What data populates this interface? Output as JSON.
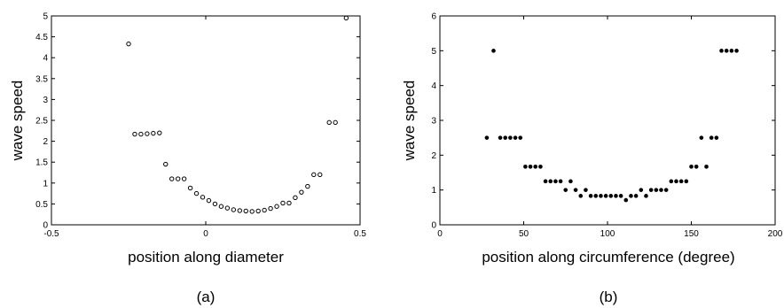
{
  "chart_data": [
    {
      "type": "scatter",
      "panel_label": "(a)",
      "xlabel": "position along diameter",
      "ylabel": "wave speed",
      "xlim": [
        -0.5,
        0.5
      ],
      "ylim": [
        0,
        5
      ],
      "xticks": [
        -0.5,
        0,
        0.5
      ],
      "xtick_labels": [
        "-0.5",
        "0",
        "0.5"
      ],
      "yticks": [
        0,
        0.5,
        1,
        1.5,
        2,
        2.5,
        3,
        3.5,
        4,
        4.5,
        5
      ],
      "ytick_labels": [
        "0",
        "0.5",
        "1",
        "1.5",
        "2",
        "2.5",
        "3",
        "3.5",
        "4",
        "4.5",
        "5"
      ],
      "marker": "open-circle",
      "grid": false,
      "points": [
        {
          "x": -0.25,
          "y": 4.33
        },
        {
          "x": -0.23,
          "y": 2.17
        },
        {
          "x": -0.21,
          "y": 2.17
        },
        {
          "x": -0.19,
          "y": 2.18
        },
        {
          "x": -0.17,
          "y": 2.19
        },
        {
          "x": -0.15,
          "y": 2.2
        },
        {
          "x": -0.13,
          "y": 1.45
        },
        {
          "x": -0.11,
          "y": 1.1
        },
        {
          "x": -0.09,
          "y": 1.1
        },
        {
          "x": -0.07,
          "y": 1.1
        },
        {
          "x": -0.05,
          "y": 0.88
        },
        {
          "x": -0.03,
          "y": 0.75
        },
        {
          "x": -0.01,
          "y": 0.66
        },
        {
          "x": 0.01,
          "y": 0.58
        },
        {
          "x": 0.03,
          "y": 0.5
        },
        {
          "x": 0.05,
          "y": 0.44
        },
        {
          "x": 0.07,
          "y": 0.4
        },
        {
          "x": 0.09,
          "y": 0.36
        },
        {
          "x": 0.11,
          "y": 0.34
        },
        {
          "x": 0.13,
          "y": 0.33
        },
        {
          "x": 0.15,
          "y": 0.32
        },
        {
          "x": 0.17,
          "y": 0.33
        },
        {
          "x": 0.19,
          "y": 0.35
        },
        {
          "x": 0.21,
          "y": 0.39
        },
        {
          "x": 0.23,
          "y": 0.44
        },
        {
          "x": 0.25,
          "y": 0.52
        },
        {
          "x": 0.27,
          "y": 0.52
        },
        {
          "x": 0.29,
          "y": 0.65
        },
        {
          "x": 0.31,
          "y": 0.78
        },
        {
          "x": 0.33,
          "y": 0.92
        },
        {
          "x": 0.35,
          "y": 1.2
        },
        {
          "x": 0.37,
          "y": 1.2
        },
        {
          "x": 0.4,
          "y": 2.45
        },
        {
          "x": 0.42,
          "y": 2.45
        },
        {
          "x": 0.455,
          "y": 4.95
        }
      ]
    },
    {
      "type": "scatter",
      "panel_label": "(b)",
      "xlabel": "position along circumference (degree)",
      "ylabel": "wave speed",
      "xlim": [
        0,
        200
      ],
      "ylim": [
        0,
        6
      ],
      "xticks": [
        0,
        50,
        100,
        150,
        200
      ],
      "xtick_labels": [
        "0",
        "50",
        "100",
        "150",
        "200"
      ],
      "yticks": [
        0,
        1,
        2,
        3,
        4,
        5,
        6
      ],
      "ytick_labels": [
        "0",
        "1",
        "2",
        "3",
        "4",
        "5",
        "6"
      ],
      "marker": "filled-dot",
      "grid": false,
      "points": [
        {
          "x": 28,
          "y": 2.5
        },
        {
          "x": 32,
          "y": 5.0
        },
        {
          "x": 36,
          "y": 2.5
        },
        {
          "x": 39,
          "y": 2.5
        },
        {
          "x": 42,
          "y": 2.5
        },
        {
          "x": 45,
          "y": 2.5
        },
        {
          "x": 48,
          "y": 2.5
        },
        {
          "x": 51,
          "y": 1.67
        },
        {
          "x": 54,
          "y": 1.67
        },
        {
          "x": 57,
          "y": 1.67
        },
        {
          "x": 60,
          "y": 1.67
        },
        {
          "x": 63,
          "y": 1.25
        },
        {
          "x": 66,
          "y": 1.25
        },
        {
          "x": 69,
          "y": 1.25
        },
        {
          "x": 72,
          "y": 1.25
        },
        {
          "x": 75,
          "y": 1.0
        },
        {
          "x": 78,
          "y": 1.25
        },
        {
          "x": 81,
          "y": 1.0
        },
        {
          "x": 84,
          "y": 0.83
        },
        {
          "x": 87,
          "y": 1.0
        },
        {
          "x": 90,
          "y": 0.83
        },
        {
          "x": 93,
          "y": 0.83
        },
        {
          "x": 96,
          "y": 0.83
        },
        {
          "x": 99,
          "y": 0.83
        },
        {
          "x": 102,
          "y": 0.83
        },
        {
          "x": 105,
          "y": 0.83
        },
        {
          "x": 108,
          "y": 0.83
        },
        {
          "x": 111,
          "y": 0.71
        },
        {
          "x": 114,
          "y": 0.83
        },
        {
          "x": 117,
          "y": 0.83
        },
        {
          "x": 120,
          "y": 1.0
        },
        {
          "x": 123,
          "y": 0.83
        },
        {
          "x": 126,
          "y": 1.0
        },
        {
          "x": 129,
          "y": 1.0
        },
        {
          "x": 132,
          "y": 1.0
        },
        {
          "x": 135,
          "y": 1.0
        },
        {
          "x": 138,
          "y": 1.25
        },
        {
          "x": 141,
          "y": 1.25
        },
        {
          "x": 144,
          "y": 1.25
        },
        {
          "x": 147,
          "y": 1.25
        },
        {
          "x": 150,
          "y": 1.67
        },
        {
          "x": 153,
          "y": 1.67
        },
        {
          "x": 156,
          "y": 2.5
        },
        {
          "x": 159,
          "y": 1.67
        },
        {
          "x": 162,
          "y": 2.5
        },
        {
          "x": 165,
          "y": 2.5
        },
        {
          "x": 168,
          "y": 5.0
        },
        {
          "x": 171,
          "y": 5.0
        },
        {
          "x": 174,
          "y": 5.0
        },
        {
          "x": 177,
          "y": 5.0
        }
      ]
    }
  ]
}
